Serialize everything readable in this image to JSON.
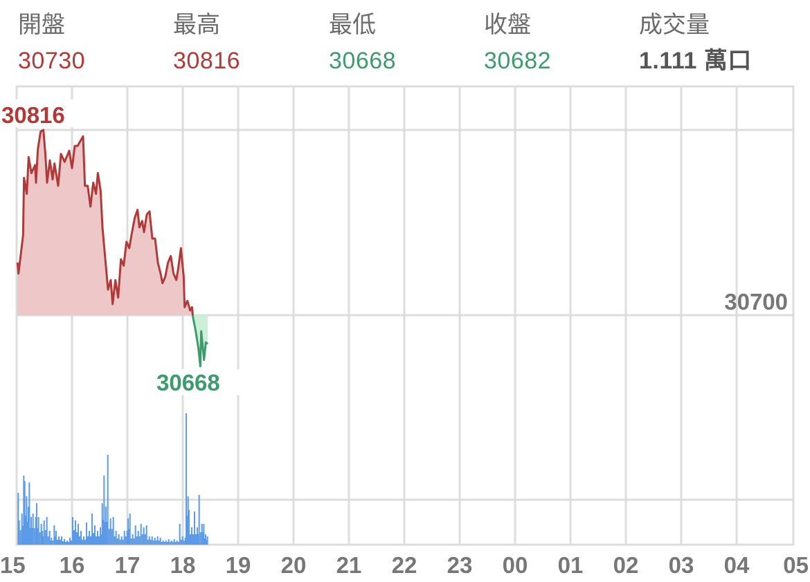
{
  "header": {
    "open": {
      "label": "開盤",
      "value": "30730"
    },
    "high": {
      "label": "最高",
      "value": "30816"
    },
    "low": {
      "label": "最低",
      "value": "30668"
    },
    "close": {
      "label": "收盤",
      "value": "30682"
    },
    "volume": {
      "label": "成交量",
      "value": "1.111 萬口"
    }
  },
  "colors": {
    "up": "#b03a3a",
    "up_fill": "#eec8c8",
    "down": "#3f9a6e",
    "down_fill": "#cdeed8",
    "volume": "#5b9ae8",
    "grid": "#dcdcdc"
  },
  "chart_data": {
    "type": "line",
    "title": "",
    "reference_price": 30700,
    "reference_label": "30700",
    "high_label": "30816",
    "low_label": "30668",
    "ylim": [
      30584,
      30843
    ],
    "x_unit": "minutes from 15:00",
    "xlim_hours": 14,
    "x_tick_labels": [
      "15",
      "16",
      "17",
      "18",
      "19",
      "20",
      "21",
      "22",
      "23",
      "00",
      "01",
      "02",
      "03",
      "04",
      "05"
    ],
    "price": [
      [
        1,
        30733
      ],
      [
        2,
        30726
      ],
      [
        7,
        30750
      ],
      [
        8,
        30786
      ],
      [
        11,
        30776
      ],
      [
        13,
        30799
      ],
      [
        16,
        30789
      ],
      [
        20,
        30794
      ],
      [
        21,
        30783
      ],
      [
        23,
        30804
      ],
      [
        26,
        30815
      ],
      [
        29,
        30816
      ],
      [
        31,
        30802
      ],
      [
        33,
        30783
      ],
      [
        36,
        30797
      ],
      [
        39,
        30785
      ],
      [
        41,
        30795
      ],
      [
        45,
        30781
      ],
      [
        48,
        30801
      ],
      [
        52,
        30796
      ],
      [
        57,
        30803
      ],
      [
        60,
        30792
      ],
      [
        63,
        30806
      ],
      [
        66,
        30806
      ],
      [
        69,
        30809
      ],
      [
        72,
        30812
      ],
      [
        74,
        30781
      ],
      [
        77,
        30781
      ],
      [
        80,
        30768
      ],
      [
        83,
        30783
      ],
      [
        86,
        30776
      ],
      [
        88,
        30789
      ],
      [
        91,
        30778
      ],
      [
        93,
        30755
      ],
      [
        95,
        30742
      ],
      [
        97,
        30729
      ],
      [
        99,
        30716
      ],
      [
        102,
        30722
      ],
      [
        104,
        30707
      ],
      [
        107,
        30722
      ],
      [
        110,
        30711
      ],
      [
        113,
        30735
      ],
      [
        116,
        30731
      ],
      [
        119,
        30746
      ],
      [
        122,
        30742
      ],
      [
        125,
        30752
      ],
      [
        128,
        30761
      ],
      [
        131,
        30766
      ],
      [
        133,
        30755
      ],
      [
        136,
        30759
      ],
      [
        138,
        30752
      ],
      [
        141,
        30763
      ],
      [
        144,
        30765
      ],
      [
        147,
        30748
      ],
      [
        150,
        30748
      ],
      [
        153,
        30733
      ],
      [
        156,
        30726
      ],
      [
        158,
        30720
      ],
      [
        161,
        30724
      ],
      [
        164,
        30733
      ],
      [
        167,
        30737
      ],
      [
        170,
        30726
      ],
      [
        173,
        30722
      ],
      [
        175,
        30729
      ],
      [
        178,
        30742
      ],
      [
        181,
        30724
      ],
      [
        182,
        30705
      ],
      [
        185,
        30709
      ],
      [
        188,
        30703
      ],
      [
        190,
        30705
      ],
      [
        191,
        30699
      ],
      [
        194,
        30690
      ],
      [
        197,
        30679
      ],
      [
        199,
        30668
      ],
      [
        200,
        30690
      ],
      [
        203,
        30672
      ],
      [
        205,
        30683
      ],
      [
        207,
        30682
      ]
    ],
    "volume_relative": [
      [
        1,
        75
      ],
      [
        2,
        35
      ],
      [
        5,
        45
      ],
      [
        7,
        100
      ],
      [
        8,
        92
      ],
      [
        10,
        70
      ],
      [
        12,
        55
      ],
      [
        13,
        90
      ],
      [
        15,
        40
      ],
      [
        17,
        45
      ],
      [
        20,
        40
      ],
      [
        21,
        60
      ],
      [
        23,
        40
      ],
      [
        26,
        30
      ],
      [
        27,
        20
      ],
      [
        29,
        35
      ],
      [
        32,
        40
      ],
      [
        35,
        20
      ],
      [
        37,
        10
      ],
      [
        40,
        28
      ],
      [
        42,
        20
      ],
      [
        45,
        12
      ],
      [
        48,
        12
      ],
      [
        51,
        8
      ],
      [
        54,
        6
      ],
      [
        57,
        10
      ],
      [
        60,
        40
      ],
      [
        63,
        35
      ],
      [
        66,
        30
      ],
      [
        69,
        20
      ],
      [
        72,
        12
      ],
      [
        75,
        32
      ],
      [
        78,
        20
      ],
      [
        81,
        45
      ],
      [
        84,
        28
      ],
      [
        87,
        20
      ],
      [
        90,
        25
      ],
      [
        92,
        60
      ],
      [
        94,
        100
      ],
      [
        96,
        55
      ],
      [
        98,
        130
      ],
      [
        101,
        38
      ],
      [
        104,
        40
      ],
      [
        107,
        20
      ],
      [
        110,
        15
      ],
      [
        113,
        12
      ],
      [
        116,
        20
      ],
      [
        119,
        20
      ],
      [
        120,
        38
      ],
      [
        122,
        45
      ],
      [
        125,
        15
      ],
      [
        128,
        28
      ],
      [
        131,
        20
      ],
      [
        134,
        30
      ],
      [
        137,
        25
      ],
      [
        140,
        28
      ],
      [
        143,
        12
      ],
      [
        146,
        12
      ],
      [
        149,
        10
      ],
      [
        152,
        12
      ],
      [
        155,
        10
      ],
      [
        158,
        6
      ],
      [
        161,
        6
      ],
      [
        164,
        8
      ],
      [
        167,
        6
      ],
      [
        170,
        8
      ],
      [
        173,
        6
      ],
      [
        176,
        30
      ],
      [
        179,
        12
      ],
      [
        182,
        10
      ],
      [
        183,
        190
      ],
      [
        185,
        70
      ],
      [
        186,
        50
      ],
      [
        189,
        25
      ],
      [
        192,
        48
      ],
      [
        195,
        25
      ],
      [
        197,
        72
      ],
      [
        200,
        30
      ],
      [
        202,
        30
      ],
      [
        204,
        15
      ],
      [
        206,
        12
      ]
    ]
  }
}
